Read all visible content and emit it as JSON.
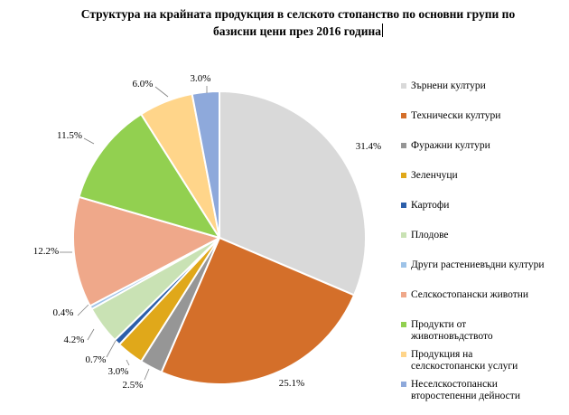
{
  "chart_data": {
    "type": "pie",
    "title": "Структура на крайната продукция в селското стопанство по основни групи по базисни цени през 2016 година",
    "title_lines": [
      "Структура на крайната продукция в селското стопанство по основни групи по",
      "базисни цени през 2016 година"
    ],
    "legend_position": "right",
    "start_angle_deg": 0,
    "direction": "clockwise",
    "slices": [
      {
        "label": "Зърнени култури",
        "value": 31.4,
        "display": "31.4%",
        "color": "#d9d9d9"
      },
      {
        "label": "Технически култури",
        "value": 25.1,
        "display": "25.1%",
        "color": "#d46f2a"
      },
      {
        "label": "Фуражни култури",
        "value": 2.5,
        "display": "2.5%",
        "color": "#969696"
      },
      {
        "label": "Зеленчуци",
        "value": 3.0,
        "display": "3.0%",
        "color": "#e0a81a"
      },
      {
        "label": "Картофи",
        "value": 0.7,
        "display": "0.7%",
        "color": "#2c5faa"
      },
      {
        "label": "Плодове",
        "value": 4.2,
        "display": "4.2%",
        "color": "#c9e2b4"
      },
      {
        "label": "Други растениевъдни култури",
        "value": 0.4,
        "display": "0.4%",
        "color": "#9ec3e8"
      },
      {
        "label": "Селскостопански животни",
        "value": 12.2,
        "display": "12.2%",
        "color": "#efa88a"
      },
      {
        "label": "Продукти от животновъдството",
        "value": 11.5,
        "display": "11.5%",
        "color": "#92d050"
      },
      {
        "label": "Продукция на селскостопански услуги",
        "value": 6.0,
        "display": "6.0%",
        "color": "#ffd58a"
      },
      {
        "label": "Неселскостопански второстепенни дейности",
        "value": 3.0,
        "display": "3.0%",
        "color": "#8ea9db"
      }
    ]
  },
  "legend": [
    {
      "lines": [
        "Зърнени култури"
      ]
    },
    {
      "lines": [
        "Технически култури"
      ]
    },
    {
      "lines": [
        "Фуражни култури"
      ]
    },
    {
      "lines": [
        "Зеленчуци"
      ]
    },
    {
      "lines": [
        "Картофи"
      ]
    },
    {
      "lines": [
        "Плодове"
      ]
    },
    {
      "lines": [
        "Други растениевъдни култури"
      ]
    },
    {
      "lines": [
        "Селскостопански животни"
      ]
    },
    {
      "lines": [
        "Продукти от",
        "животновъдството"
      ]
    },
    {
      "lines": [
        "Продукция на",
        "селскостопански услуги"
      ]
    },
    {
      "lines": [
        "Неселскостопански",
        "второстепенни дейности"
      ]
    }
  ]
}
